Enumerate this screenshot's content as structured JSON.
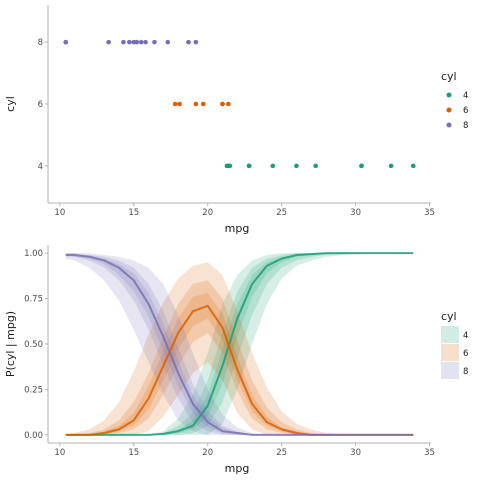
{
  "chart_data": [
    {
      "type": "scatter",
      "xlabel": "mpg",
      "ylabel": "cyl",
      "xlim": [
        9.2,
        35.1
      ],
      "ylim": [
        2.8,
        9.2
      ],
      "x_ticks": [
        10,
        15,
        20,
        25,
        30,
        35
      ],
      "x_tick_labels": [
        "10",
        "15",
        "20",
        "25",
        "30",
        "35"
      ],
      "y_ticks": [
        4,
        6,
        8
      ],
      "y_tick_labels": [
        "4",
        "6",
        "8"
      ],
      "legend_title": "cyl",
      "legend_position": "right",
      "series": [
        {
          "name": "4",
          "color": "#1b9e77",
          "x": [
            21.3,
            21.4,
            21.5,
            22.8,
            22.8,
            24.4,
            26.0,
            27.3,
            30.4,
            30.4,
            32.4,
            33.9
          ],
          "y": [
            4,
            4,
            4,
            4,
            4,
            4,
            4,
            4,
            4,
            4,
            4,
            4
          ]
        },
        {
          "name": "6",
          "color": "#d95f02",
          "x": [
            17.8,
            18.1,
            19.2,
            19.7,
            21.0,
            21.0,
            21.4
          ],
          "y": [
            6,
            6,
            6,
            6,
            6,
            6,
            6
          ]
        },
        {
          "name": "8",
          "color": "#7570b3",
          "x": [
            10.4,
            10.4,
            13.3,
            14.3,
            14.7,
            15.0,
            15.2,
            15.2,
            15.5,
            15.8,
            16.4,
            17.3,
            18.7,
            19.2
          ],
          "y": [
            8,
            8,
            8,
            8,
            8,
            8,
            8,
            8,
            8,
            8,
            8,
            8,
            8,
            8
          ]
        }
      ]
    },
    {
      "type": "line",
      "xlabel": "mpg",
      "ylabel": "P(cyl | mpg)",
      "xlim": [
        9.2,
        35.1
      ],
      "ylim": [
        -0.045,
        1.045
      ],
      "x_ticks": [
        10,
        15,
        20,
        25,
        30,
        35
      ],
      "x_tick_labels": [
        "10",
        "15",
        "20",
        "25",
        "30",
        "35"
      ],
      "y_ticks": [
        0,
        0.25,
        0.5,
        0.75,
        1.0
      ],
      "y_tick_labels": [
        "0.00",
        "0.25",
        "0.50",
        "0.75",
        "1.00"
      ],
      "legend_title": "cyl",
      "legend_position": "right",
      "band_opacity": 0.18,
      "x": [
        10.4,
        11.0,
        12.0,
        13.0,
        14.0,
        15.0,
        16.0,
        17.0,
        18.0,
        19.0,
        20.0,
        21.0,
        22.0,
        23.0,
        24.0,
        25.0,
        26.0,
        27.0,
        28.0,
        30.0,
        32.0,
        33.9
      ],
      "series": [
        {
          "name": "4",
          "color": "#1b9e77",
          "median": [
            0.0,
            0.0,
            0.0,
            0.0,
            0.0,
            0.0,
            0.0,
            0.005,
            0.02,
            0.05,
            0.16,
            0.38,
            0.64,
            0.83,
            0.93,
            0.97,
            0.99,
            0.995,
            1.0,
            1.0,
            1.0,
            1.0
          ],
          "bands": [
            {
              "lower": [
                0.0,
                0.0,
                0.0,
                0.0,
                0.0,
                0.0,
                0.0,
                0.0,
                0.0,
                0.0,
                0.0,
                0.06,
                0.25,
                0.5,
                0.72,
                0.86,
                0.93,
                0.96,
                0.98,
                0.995,
                1.0,
                1.0
              ],
              "upper": [
                0.0,
                0.0,
                0.0,
                0.0,
                0.0,
                0.0,
                0.0,
                0.02,
                0.09,
                0.22,
                0.45,
                0.72,
                0.88,
                0.96,
                0.99,
                1.0,
                1.0,
                1.0,
                1.0,
                1.0,
                1.0,
                1.0
              ]
            },
            {
              "lower": [
                0.0,
                0.0,
                0.0,
                0.0,
                0.0,
                0.0,
                0.0,
                0.0,
                0.0,
                0.01,
                0.05,
                0.18,
                0.42,
                0.66,
                0.83,
                0.92,
                0.96,
                0.98,
                0.99,
                1.0,
                1.0,
                1.0
              ],
              "upper": [
                0.0,
                0.0,
                0.0,
                0.0,
                0.0,
                0.0,
                0.0,
                0.01,
                0.05,
                0.12,
                0.3,
                0.56,
                0.79,
                0.92,
                0.97,
                0.99,
                1.0,
                1.0,
                1.0,
                1.0,
                1.0,
                1.0
              ]
            },
            {
              "lower": [
                0.0,
                0.0,
                0.0,
                0.0,
                0.0,
                0.0,
                0.0,
                0.0,
                0.01,
                0.03,
                0.1,
                0.28,
                0.54,
                0.76,
                0.89,
                0.95,
                0.98,
                0.99,
                1.0,
                1.0,
                1.0,
                1.0
              ],
              "upper": [
                0.0,
                0.0,
                0.0,
                0.0,
                0.0,
                0.0,
                0.0,
                0.01,
                0.03,
                0.08,
                0.22,
                0.47,
                0.72,
                0.88,
                0.95,
                0.98,
                0.99,
                1.0,
                1.0,
                1.0,
                1.0,
                1.0
              ]
            }
          ]
        },
        {
          "name": "6",
          "color": "#d95f02",
          "median": [
            0.0,
            0.0,
            0.0,
            0.01,
            0.03,
            0.08,
            0.2,
            0.38,
            0.56,
            0.68,
            0.71,
            0.59,
            0.36,
            0.17,
            0.07,
            0.03,
            0.01,
            0.0,
            0.0,
            0.0,
            0.0,
            0.0
          ],
          "bands": [
            {
              "lower": [
                0.0,
                0.0,
                0.0,
                0.0,
                0.0,
                0.0,
                0.02,
                0.1,
                0.22,
                0.34,
                0.4,
                0.3,
                0.12,
                0.03,
                0.0,
                0.0,
                0.0,
                0.0,
                0.0,
                0.0,
                0.0,
                0.0
              ],
              "upper": [
                0.0,
                0.01,
                0.03,
                0.08,
                0.18,
                0.35,
                0.55,
                0.73,
                0.86,
                0.93,
                0.95,
                0.88,
                0.68,
                0.45,
                0.26,
                0.13,
                0.06,
                0.03,
                0.01,
                0.0,
                0.0,
                0.0
              ]
            },
            {
              "lower": [
                0.0,
                0.0,
                0.0,
                0.0,
                0.01,
                0.03,
                0.09,
                0.22,
                0.38,
                0.51,
                0.56,
                0.45,
                0.24,
                0.09,
                0.03,
                0.01,
                0.0,
                0.0,
                0.0,
                0.0,
                0.0,
                0.0
              ],
              "upper": [
                0.0,
                0.0,
                0.01,
                0.03,
                0.08,
                0.18,
                0.34,
                0.54,
                0.72,
                0.83,
                0.85,
                0.75,
                0.52,
                0.3,
                0.15,
                0.07,
                0.03,
                0.01,
                0.0,
                0.0,
                0.0,
                0.0
              ]
            },
            {
              "lower": [
                0.0,
                0.0,
                0.0,
                0.0,
                0.02,
                0.05,
                0.14,
                0.3,
                0.47,
                0.6,
                0.64,
                0.52,
                0.3,
                0.13,
                0.05,
                0.02,
                0.0,
                0.0,
                0.0,
                0.0,
                0.0,
                0.0
              ],
              "upper": [
                0.0,
                0.0,
                0.0,
                0.02,
                0.05,
                0.12,
                0.27,
                0.46,
                0.64,
                0.76,
                0.78,
                0.67,
                0.43,
                0.22,
                0.1,
                0.04,
                0.02,
                0.0,
                0.0,
                0.0,
                0.0,
                0.0
              ]
            }
          ]
        },
        {
          "name": "8",
          "color": "#7570b3",
          "median": [
            0.99,
            0.99,
            0.98,
            0.96,
            0.92,
            0.85,
            0.72,
            0.54,
            0.34,
            0.17,
            0.07,
            0.02,
            0.01,
            0.0,
            0.0,
            0.0,
            0.0,
            0.0,
            0.0,
            0.0,
            0.0,
            0.0
          ],
          "bands": [
            {
              "lower": [
                0.97,
                0.96,
                0.92,
                0.85,
                0.74,
                0.58,
                0.4,
                0.22,
                0.08,
                0.02,
                0.0,
                0.0,
                0.0,
                0.0,
                0.0,
                0.0,
                0.0,
                0.0,
                0.0,
                0.0,
                0.0,
                0.0
              ],
              "upper": [
                1.0,
                1.0,
                1.0,
                0.99,
                0.98,
                0.96,
                0.92,
                0.83,
                0.66,
                0.45,
                0.25,
                0.11,
                0.04,
                0.01,
                0.0,
                0.0,
                0.0,
                0.0,
                0.0,
                0.0,
                0.0,
                0.0
              ]
            },
            {
              "lower": [
                0.98,
                0.98,
                0.96,
                0.92,
                0.85,
                0.74,
                0.58,
                0.38,
                0.2,
                0.07,
                0.02,
                0.0,
                0.0,
                0.0,
                0.0,
                0.0,
                0.0,
                0.0,
                0.0,
                0.0,
                0.0,
                0.0
              ],
              "upper": [
                1.0,
                1.0,
                0.99,
                0.98,
                0.96,
                0.92,
                0.83,
                0.68,
                0.48,
                0.28,
                0.13,
                0.05,
                0.02,
                0.0,
                0.0,
                0.0,
                0.0,
                0.0,
                0.0,
                0.0,
                0.0,
                0.0
              ]
            },
            {
              "lower": [
                0.99,
                0.98,
                0.97,
                0.94,
                0.88,
                0.79,
                0.65,
                0.46,
                0.27,
                0.12,
                0.04,
                0.01,
                0.0,
                0.0,
                0.0,
                0.0,
                0.0,
                0.0,
                0.0,
                0.0,
                0.0,
                0.0
              ],
              "upper": [
                1.0,
                0.99,
                0.99,
                0.97,
                0.94,
                0.89,
                0.78,
                0.61,
                0.41,
                0.22,
                0.1,
                0.04,
                0.01,
                0.0,
                0.0,
                0.0,
                0.0,
                0.0,
                0.0,
                0.0,
                0.0,
                0.0
              ]
            }
          ]
        }
      ]
    }
  ]
}
